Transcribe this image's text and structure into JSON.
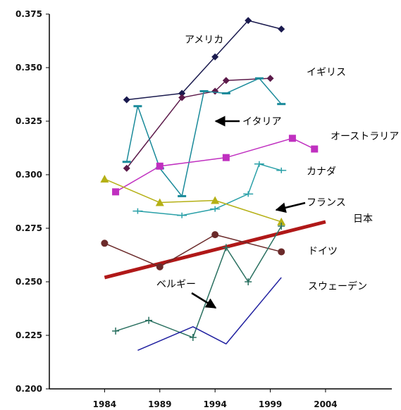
{
  "chart_data": {
    "type": "line",
    "title": "",
    "xlabel": "",
    "ylabel": "",
    "xlim": [
      1979,
      2010
    ],
    "ylim": [
      0.2,
      0.375
    ],
    "x_ticks": [
      "1984",
      "1989",
      "1994",
      "1999",
      "2004"
    ],
    "y_ticks": [
      "0.200",
      "0.225",
      "0.250",
      "0.275",
      "0.300",
      "0.325",
      "0.350",
      "0.375"
    ],
    "grid": false,
    "legend": "direct labels",
    "series": [
      {
        "name": "アメリカ",
        "color": "#1a1a4e",
        "marker": "diamond",
        "points": [
          [
            1986,
            0.335
          ],
          [
            1991,
            0.338
          ],
          [
            1994,
            0.355
          ],
          [
            1997,
            0.372
          ],
          [
            2000,
            0.368
          ]
        ]
      },
      {
        "name": "イギリス",
        "color": "#5c1a4a",
        "marker": "diamond",
        "points": [
          [
            1986,
            0.303
          ],
          [
            1991,
            0.336
          ],
          [
            1994,
            0.339
          ],
          [
            1995,
            0.344
          ],
          [
            1999,
            0.345
          ]
        ]
      },
      {
        "name": "イタリア",
        "color": "#1a8a9a",
        "marker": "dash",
        "points": [
          [
            1986,
            0.306
          ],
          [
            1987,
            0.332
          ],
          [
            1989,
            0.303
          ],
          [
            1991,
            0.29
          ],
          [
            1993,
            0.339
          ],
          [
            1995,
            0.338
          ],
          [
            1998,
            0.345
          ],
          [
            2000,
            0.333
          ]
        ]
      },
      {
        "name": "オーストラリア",
        "color": "#c030c0",
        "marker": "square",
        "points": [
          [
            1985,
            0.292
          ],
          [
            1989,
            0.304
          ],
          [
            1995,
            0.308
          ],
          [
            2001,
            0.317
          ],
          [
            2003,
            0.312
          ]
        ]
      },
      {
        "name": "カナダ",
        "color": "#2aa0a8",
        "marker": "x",
        "points": [
          [
            1987,
            0.283
          ],
          [
            1991,
            0.281
          ],
          [
            1994,
            0.284
          ],
          [
            1997,
            0.291
          ],
          [
            1998,
            0.305
          ],
          [
            2000,
            0.302
          ]
        ]
      },
      {
        "name": "フランス",
        "color": "#b5b015",
        "marker": "triangle",
        "points": [
          [
            1984,
            0.298
          ],
          [
            1989,
            0.287
          ],
          [
            1994,
            0.288
          ],
          [
            2000,
            0.278
          ]
        ]
      },
      {
        "name": "日本",
        "color": "#b01818",
        "marker": "none",
        "thick": true,
        "points": [
          [
            1984,
            0.252
          ],
          [
            2004,
            0.278
          ]
        ]
      },
      {
        "name": "ドイツ",
        "color": "#6b2a2a",
        "marker": "circle",
        "points": [
          [
            1984,
            0.268
          ],
          [
            1989,
            0.257
          ],
          [
            1994,
            0.272
          ],
          [
            2000,
            0.264
          ]
        ]
      },
      {
        "name": "ベルギー",
        "color": "#2a7060",
        "marker": "plus",
        "points": [
          [
            1985,
            0.227
          ],
          [
            1988,
            0.232
          ],
          [
            1992,
            0.224
          ],
          [
            1995,
            0.266
          ],
          [
            1997,
            0.25
          ],
          [
            2000,
            0.276
          ]
        ]
      },
      {
        "name": "スウェーデン",
        "color": "#2020a0",
        "marker": "none",
        "points": [
          [
            1987,
            0.218
          ],
          [
            1992,
            0.229
          ],
          [
            1995,
            0.221
          ],
          [
            2000,
            0.252
          ]
        ]
      }
    ]
  }
}
